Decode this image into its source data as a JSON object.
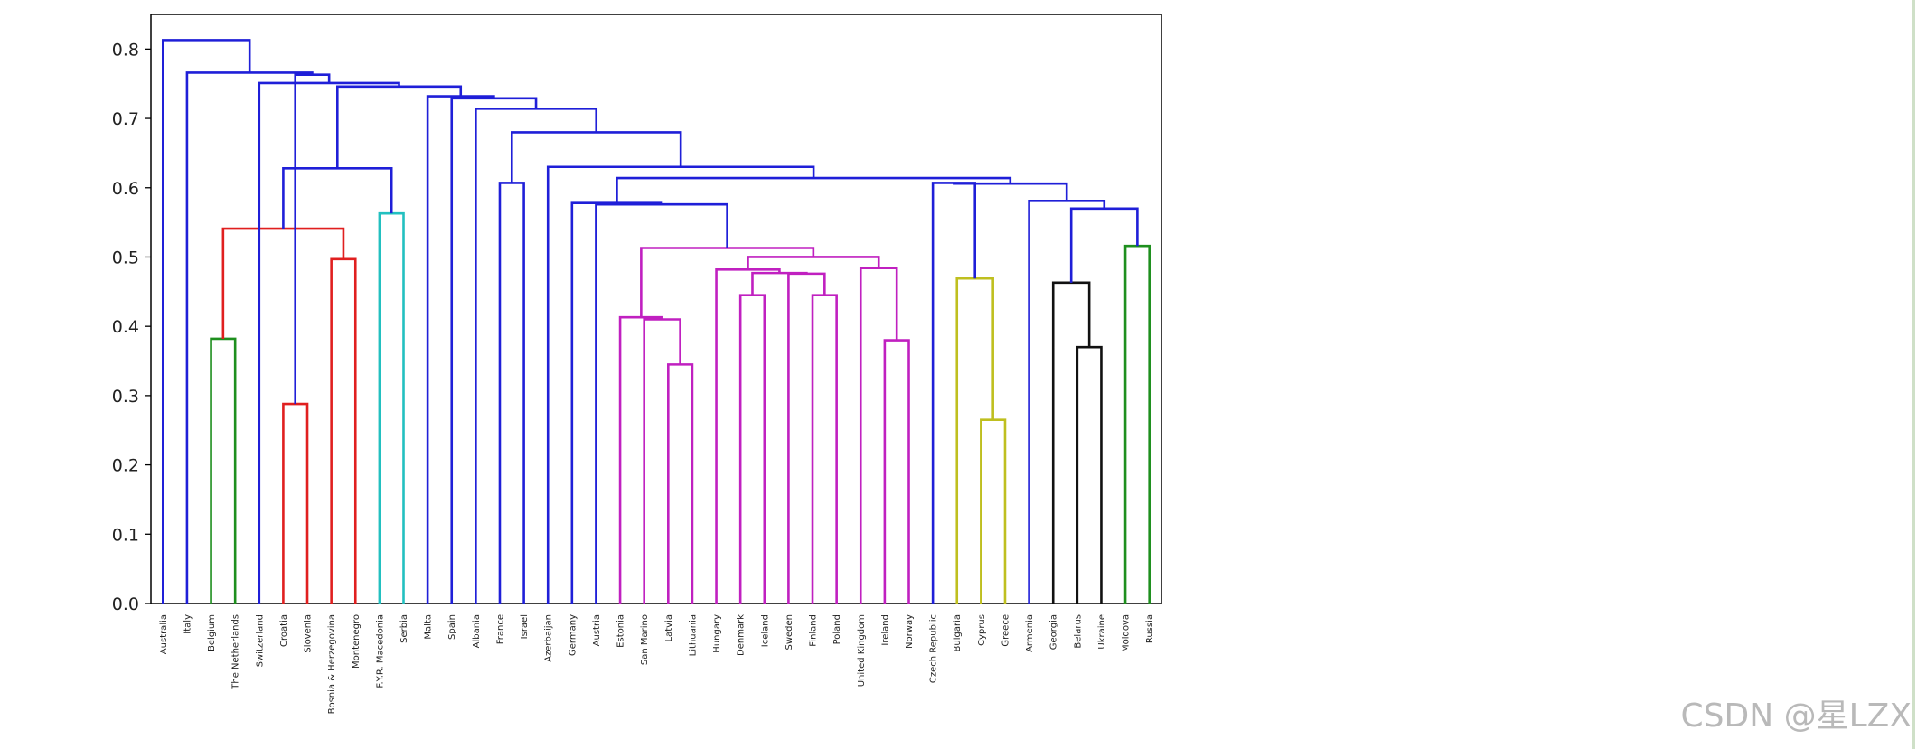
{
  "watermark": "CSDN @星LZX",
  "chart_data": {
    "type": "dendrogram",
    "ylim": [
      0.0,
      0.85
    ],
    "yticks": [
      0.0,
      0.1,
      0.2,
      0.3,
      0.4,
      0.5,
      0.6,
      0.7,
      0.8
    ],
    "ytick_labels": [
      "0.0",
      "0.1",
      "0.2",
      "0.3",
      "0.4",
      "0.5",
      "0.6",
      "0.7",
      "0.8"
    ],
    "leaves": [
      "Australia",
      "Italy",
      "Belgium",
      "The Netherlands",
      "Switzerland",
      "Croatia",
      "Slovenia",
      "Bosnia & Herzegovina",
      "Montenegro",
      "F.Y.R. Macedonia",
      "Serbia",
      "Malta",
      "Spain",
      "Albania",
      "France",
      "Israel",
      "Azerbaijan",
      "Germany",
      "Austria",
      "Estonia",
      "San Marino",
      "Latvia",
      "Lithuania",
      "Hungary",
      "Denmark",
      "Iceland",
      "Sweden",
      "Finland",
      "Poland",
      "United Kingdom",
      "Ireland",
      "Norway",
      "Czech Republic",
      "Bulgaria",
      "Cyprus",
      "Greece",
      "Armenia",
      "Georgia",
      "Belarus",
      "Ukraine",
      "Moldova",
      "Russia"
    ],
    "colors": {
      "blue": "#1f1fd8",
      "green": "#1e8f1e",
      "red": "#e01f1f",
      "cyan": "#22c0c0",
      "magenta": "#c020c0",
      "yellow": "#bfbf1f",
      "black": "#111111"
    },
    "merges": [
      {
        "a": 2,
        "b": 3,
        "h": 0.382,
        "c": "green"
      },
      {
        "a": 5,
        "b": 6,
        "h": 0.288,
        "c": "red"
      },
      {
        "a": 7,
        "b": 8,
        "h": 0.497,
        "c": "red"
      },
      {
        "a": 42,
        "b": 44,
        "h": 0.541,
        "c": "red"
      },
      {
        "a": 9,
        "b": 10,
        "h": 0.563,
        "c": "cyan"
      },
      {
        "a": 45,
        "b": 46,
        "h": 0.628,
        "c": "blue"
      },
      {
        "a": 14,
        "b": 15,
        "h": 0.607,
        "c": "blue"
      },
      {
        "a": 21,
        "b": 22,
        "h": 0.345,
        "c": "magenta"
      },
      {
        "a": 20,
        "b": 49,
        "h": 0.41,
        "c": "magenta"
      },
      {
        "a": 19,
        "b": 50,
        "h": 0.413,
        "c": "magenta"
      },
      {
        "a": 24,
        "b": 25,
        "h": 0.445,
        "c": "magenta"
      },
      {
        "a": 27,
        "b": 28,
        "h": 0.445,
        "c": "magenta"
      },
      {
        "a": 26,
        "b": 53,
        "h": 0.476,
        "c": "magenta"
      },
      {
        "a": 52,
        "b": 54,
        "h": 0.477,
        "c": "magenta"
      },
      {
        "a": 23,
        "b": 55,
        "h": 0.482,
        "c": "magenta"
      },
      {
        "a": 30,
        "b": 31,
        "h": 0.38,
        "c": "magenta"
      },
      {
        "a": 29,
        "b": 57,
        "h": 0.484,
        "c": "magenta"
      },
      {
        "a": 56,
        "b": 58,
        "h": 0.5,
        "c": "magenta"
      },
      {
        "a": 51,
        "b": 59,
        "h": 0.513,
        "c": "magenta"
      },
      {
        "a": 18,
        "b": 60,
        "h": 0.576,
        "c": "blue"
      },
      {
        "a": 17,
        "b": 61,
        "h": 0.578,
        "c": "blue"
      },
      {
        "a": 34,
        "b": 35,
        "h": 0.265,
        "c": "yellow"
      },
      {
        "a": 33,
        "b": 63,
        "h": 0.469,
        "c": "yellow"
      },
      {
        "a": 32,
        "b": 64,
        "h": 0.607,
        "c": "blue"
      },
      {
        "a": 38,
        "b": 39,
        "h": 0.37,
        "c": "black"
      },
      {
        "a": 37,
        "b": 66,
        "h": 0.463,
        "c": "black"
      },
      {
        "a": 40,
        "b": 41,
        "h": 0.516,
        "c": "green"
      },
      {
        "a": 67,
        "b": 68,
        "h": 0.57,
        "c": "blue"
      },
      {
        "a": 36,
        "b": 69,
        "h": 0.581,
        "c": "blue"
      },
      {
        "a": 65,
        "b": 70,
        "h": 0.606,
        "c": "blue"
      },
      {
        "a": 62,
        "b": 71,
        "h": 0.614,
        "c": "blue"
      },
      {
        "a": 16,
        "b": 72,
        "h": 0.63,
        "c": "blue"
      },
      {
        "a": 48,
        "b": 73,
        "h": 0.68,
        "c": "blue"
      },
      {
        "a": 74,
        "b": 13,
        "h": 0.714,
        "c": "blue"
      },
      {
        "a": 75,
        "b": 12,
        "h": 0.729,
        "c": "blue"
      },
      {
        "a": 76,
        "b": 11,
        "h": 0.732,
        "c": "blue"
      },
      {
        "a": 47,
        "b": 77,
        "h": 0.746,
        "c": "blue"
      },
      {
        "a": 4,
        "b": 78,
        "h": 0.751,
        "c": "blue"
      },
      {
        "a": 43,
        "b": 79,
        "h": 0.763,
        "c": "blue"
      },
      {
        "a": 1,
        "b": 80,
        "h": 0.766,
        "c": "blue"
      },
      {
        "a": 0,
        "b": 81,
        "h": 0.813,
        "c": "blue"
      }
    ]
  }
}
